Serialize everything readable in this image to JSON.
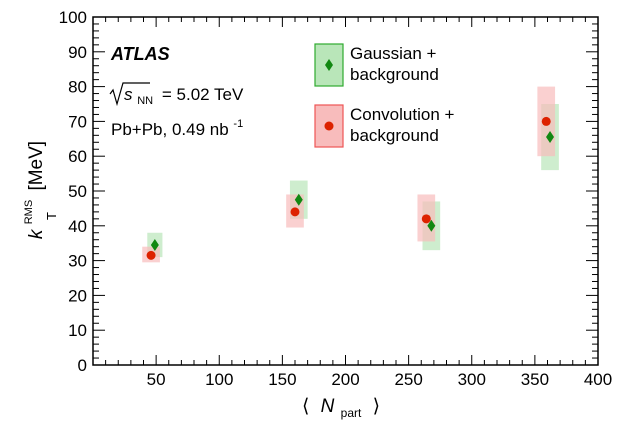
{
  "chart_data": {
    "type": "scatter",
    "xlabel": "⟨ N_part ⟩",
    "xlabel_parts": {
      "open": "⟨",
      "main": "N",
      "sub": "part",
      "close": "⟩"
    },
    "ylabel_parts": {
      "main": "k",
      "sup": "RMS",
      "sub": "T",
      "unit": "[MeV]"
    },
    "xlim": [
      0,
      400
    ],
    "ylim": [
      0,
      100
    ],
    "x_ticks": [
      50,
      100,
      150,
      200,
      250,
      300,
      350,
      400
    ],
    "y_ticks": [
      0,
      10,
      20,
      30,
      40,
      50,
      60,
      70,
      80,
      90,
      100
    ],
    "grid": false,
    "legend_position": "top-center",
    "annotations": {
      "experiment": "ATLAS",
      "energy_sqrt": "s",
      "energy_sub": "NN",
      "energy_value": "= 5.02 TeV",
      "dataset": "Pb+Pb, 0.49 nb",
      "dataset_sup": "-1"
    },
    "series": [
      {
        "name": "Gaussian + background",
        "legend_lines": [
          "Gaussian +",
          "background"
        ],
        "marker": "diamond",
        "color": "#118811",
        "box_fill": "#b9e6b9",
        "box_stroke": "#2eaa2e",
        "points": [
          {
            "x": 49,
            "y": 34.5,
            "x_err": 6,
            "y_low": 31,
            "y_high": 38
          },
          {
            "x": 163,
            "y": 47.5,
            "x_err": 7,
            "y_low": 42,
            "y_high": 53
          },
          {
            "x": 268,
            "y": 40,
            "x_err": 7,
            "y_low": 33,
            "y_high": 47
          },
          {
            "x": 362,
            "y": 65.5,
            "x_err": 7,
            "y_low": 56,
            "y_high": 75
          }
        ]
      },
      {
        "name": "Convolution + background",
        "legend_lines": [
          "Convolution +",
          "background"
        ],
        "marker": "circle",
        "color": "#dd2200",
        "box_fill": "#f8bcbc",
        "box_stroke": "#ee5555",
        "points": [
          {
            "x": 46,
            "y": 31.5,
            "x_err": 7,
            "y_low": 29.5,
            "y_high": 34
          },
          {
            "x": 160,
            "y": 44,
            "x_err": 7,
            "y_low": 39.5,
            "y_high": 49
          },
          {
            "x": 264,
            "y": 42,
            "x_err": 7,
            "y_low": 35.5,
            "y_high": 49
          },
          {
            "x": 359,
            "y": 70,
            "x_err": 7,
            "y_low": 60,
            "y_high": 80
          }
        ]
      }
    ]
  }
}
